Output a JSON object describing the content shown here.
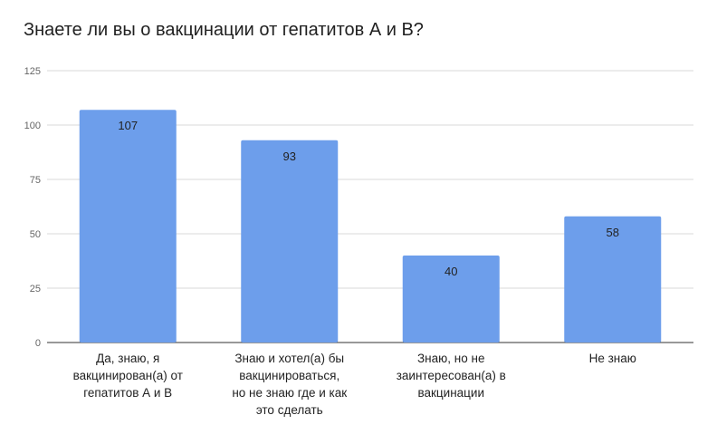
{
  "chart_data": {
    "type": "bar",
    "title": "Знаете ли вы о вакцинации от гепатитов А и В?",
    "categories": [
      [
        "Да, знаю, я",
        "вакцинирован(а) от",
        "гепатитов А и В"
      ],
      [
        "Знаю и хотел(а) бы",
        "вакцинироваться,",
        "но не знаю где и как",
        "это сделать"
      ],
      [
        "Знаю, но не",
        "заинтересован(а) в",
        "вакцинации"
      ],
      [
        "Не знаю"
      ]
    ],
    "values": [
      107,
      93,
      40,
      58
    ],
    "ylim": [
      0,
      125
    ],
    "yticks": [
      0,
      25,
      50,
      75,
      100,
      125
    ],
    "grid": true,
    "bar_color": "#6d9eeb",
    "grid_color": "#d9d9d9",
    "axis_color": "#333333"
  }
}
